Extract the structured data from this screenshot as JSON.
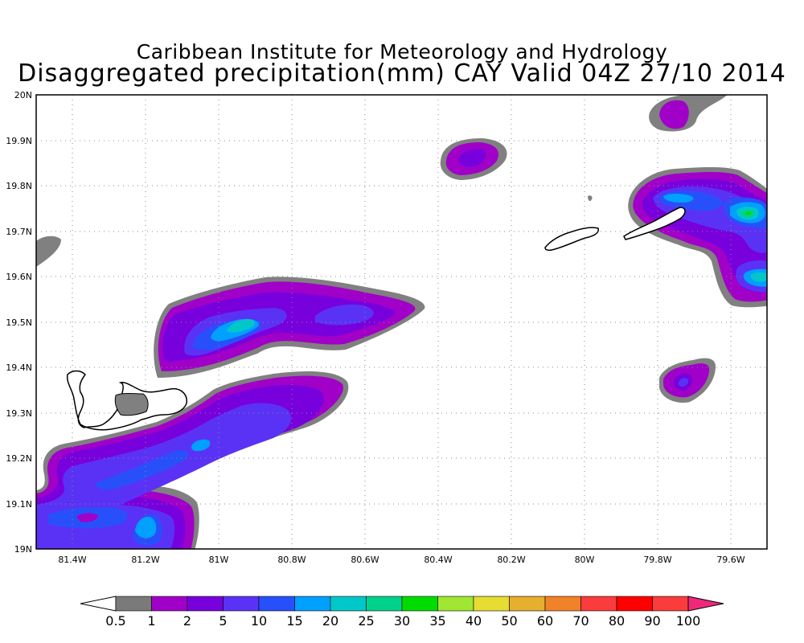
{
  "title": "Caribbean Institute for Meteorology and Hydrology",
  "subtitle": "Disaggregated precipitation(mm) CAY Valid 04Z 27/10 2014",
  "map": {
    "lat_ticks": [
      "20N",
      "19.9N",
      "19.8N",
      "19.7N",
      "19.6N",
      "19.5N",
      "19.4N",
      "19.3N",
      "19.2N",
      "19.1N",
      "19N"
    ],
    "lon_ticks": [
      "81.4W",
      "81.2W",
      "81W",
      "80.8W",
      "80.6W",
      "80.4W",
      "80.2W",
      "80W",
      "79.8W",
      "79.6W"
    ],
    "lat_range": [
      19.0,
      20.0
    ],
    "lon_range": [
      -81.5,
      -79.5
    ],
    "grid": "dotted"
  },
  "colorbar": {
    "labels": [
      "0.5",
      "1",
      "2",
      "5",
      "10",
      "15",
      "20",
      "25",
      "30",
      "35",
      "40",
      "50",
      "60",
      "70",
      "80",
      "90",
      "100"
    ],
    "colors": [
      "#7a7a7a",
      "#a000c8",
      "#7800dc",
      "#5a32f5",
      "#2850fa",
      "#00a0ff",
      "#00c8c8",
      "#00d28c",
      "#00dc00",
      "#a0e632",
      "#e6dc32",
      "#e6af2d",
      "#f08228",
      "#fa3c3c",
      "#ff0000",
      "#fa3c3c"
    ],
    "low_arrow_color": "#ffffff",
    "high_arrow_color": "#f0287a"
  },
  "palette": {
    "level_0.5": "#808080",
    "level_1": "#a000c8",
    "level_2": "#7800dc",
    "level_5": "#5a32f5",
    "level_10": "#2850fa",
    "level_15": "#00a0ff",
    "level_20": "#00c8c8",
    "level_25": "#00d28c",
    "level_30": "#00dc00"
  }
}
